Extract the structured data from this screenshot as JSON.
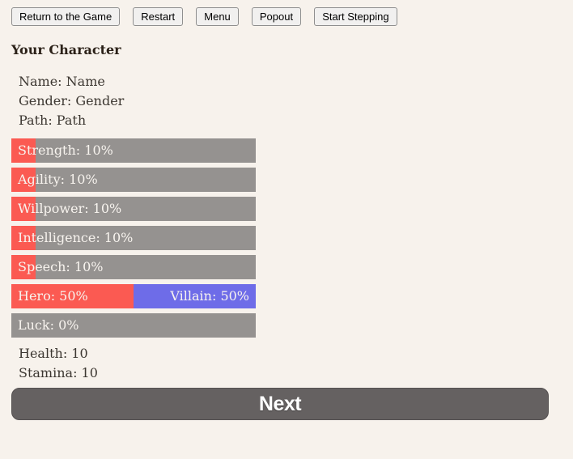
{
  "toolbar": {
    "buttons": [
      {
        "label": "Return to the Game"
      },
      {
        "label": "Restart"
      },
      {
        "label": "Menu"
      },
      {
        "label": "Popout"
      },
      {
        "label": "Start Stepping"
      }
    ]
  },
  "character": {
    "heading": "Your Character",
    "info": {
      "name": "Name: Name",
      "gender": "Gender: Gender",
      "path": "Path: Path"
    },
    "stats": [
      {
        "id": "strength",
        "label": "Strength: 10%",
        "percent": 10
      },
      {
        "id": "agility",
        "label": "Agility: 10%",
        "percent": 10
      },
      {
        "id": "willpower",
        "label": "Willpower: 10%",
        "percent": 10
      },
      {
        "id": "intelligence",
        "label": "Intelligence: 10%",
        "percent": 10
      },
      {
        "id": "speech",
        "label": "Speech: 10%",
        "percent": 10
      }
    ],
    "alignment": {
      "hero_label": "Hero: 50%",
      "hero_percent": 50,
      "villain_label": "Villain: 50%",
      "villain_percent": 50
    },
    "luck": {
      "label": "Luck: 0%",
      "percent": 0
    },
    "vitals": {
      "health": "Health: 10",
      "stamina": "Stamina: 10"
    }
  },
  "next_button": {
    "label": "Next"
  },
  "colors": {
    "background": "#f7f2ec",
    "bar_gray": "#959290",
    "bar_red": "#fb5a52",
    "bar_blue": "#6e6ce8",
    "next_button_gray": "#656161"
  }
}
